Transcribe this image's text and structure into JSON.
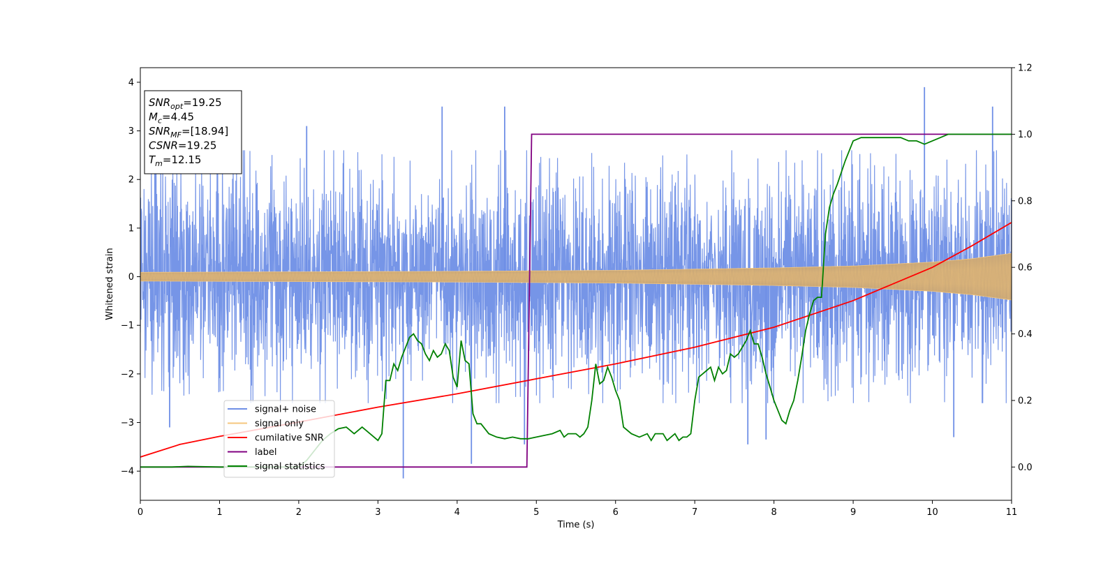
{
  "chart_data": {
    "type": "line",
    "xlabel": "Time (s)",
    "ylabel": "Whitened strain",
    "xlim": [
      0,
      11
    ],
    "ylim": [
      -4.6,
      4.3
    ],
    "y2lim": [
      -0.1,
      1.2
    ],
    "x_ticks": [
      0,
      1,
      2,
      3,
      4,
      5,
      6,
      7,
      8,
      9,
      10,
      11
    ],
    "y_ticks": [
      -4,
      -3,
      -2,
      -1,
      0,
      1,
      2,
      3,
      4
    ],
    "y2_ticks": [
      0.0,
      0.2,
      0.4,
      0.6,
      0.8,
      1.0,
      1.2
    ],
    "stats_box": [
      {
        "symbol": "SNR",
        "sub": "opt",
        "value": "=19.25"
      },
      {
        "symbol": "M",
        "sub": "c",
        "value": "=4.45"
      },
      {
        "symbol": "SNR",
        "sub": "MF",
        "value": "=[18.94]"
      },
      {
        "symbol": "CSNR",
        "sub": "",
        "value": "=19.25"
      },
      {
        "symbol": "T",
        "sub": "m",
        "value": "=12.15"
      }
    ],
    "legend": {
      "position": "lower-left",
      "entries": [
        {
          "label": "signal+ noise",
          "color": "#6f8fe6"
        },
        {
          "label": "signal only",
          "color": "#f5c77e"
        },
        {
          "label": "cumilative SNR",
          "color": "#ff0000"
        },
        {
          "label": "label",
          "color": "#800080"
        },
        {
          "label": "signal statistics",
          "color": "#008000"
        }
      ]
    },
    "series": [
      {
        "name": "signal+ noise",
        "axis": "left",
        "color": "#6f8fe6",
        "envelope": {
          "x": [
            0,
            11
          ],
          "ymin": [
            -2.6,
            -2.6
          ],
          "ymax": [
            2.6,
            2.6
          ]
        },
        "spikes": [
          {
            "x": 3.32,
            "y": -4.15
          },
          {
            "x": 4.18,
            "y": -3.85
          },
          {
            "x": 4.85,
            "y": -3.45
          },
          {
            "x": 4.6,
            "y": 3.5
          },
          {
            "x": 3.81,
            "y": 3.5
          },
          {
            "x": 7.67,
            "y": -3.45
          },
          {
            "x": 9.9,
            "y": 3.9
          },
          {
            "x": 10.76,
            "y": 3.5
          },
          {
            "x": 10.27,
            "y": -3.3
          },
          {
            "x": 7.9,
            "y": -3.35
          },
          {
            "x": 2.1,
            "y": 3.1
          },
          {
            "x": 0.37,
            "y": -3.1
          }
        ]
      },
      {
        "name": "signal only",
        "axis": "left",
        "color": "#f5c77e",
        "amplitude": {
          "x": [
            0,
            2,
            4,
            6,
            8,
            9,
            10,
            10.5,
            11
          ],
          "y": [
            0.09,
            0.1,
            0.11,
            0.13,
            0.18,
            0.22,
            0.3,
            0.37,
            0.48
          ]
        }
      },
      {
        "name": "cumilative SNR",
        "axis": "right",
        "color": "#ff0000",
        "x": [
          0,
          0.5,
          1,
          2,
          3,
          4,
          5,
          6,
          7,
          8,
          9,
          10,
          10.5,
          11
        ],
        "y": [
          0.03,
          0.068,
          0.092,
          0.135,
          0.18,
          0.22,
          0.265,
          0.31,
          0.36,
          0.42,
          0.5,
          0.6,
          0.665,
          0.735
        ]
      },
      {
        "name": "label",
        "axis": "right",
        "color": "#800080",
        "x": [
          0,
          4.88,
          4.94,
          11
        ],
        "y": [
          0.0,
          0.0,
          1.0,
          1.0
        ]
      },
      {
        "name": "signal statistics",
        "axis": "right",
        "color": "#008000",
        "x": [
          0,
          0.4,
          0.6,
          1.0,
          2.0,
          2.1,
          2.2,
          2.3,
          2.4,
          2.5,
          2.6,
          2.7,
          2.8,
          2.9,
          3.0,
          3.05,
          3.1,
          3.15,
          3.2,
          3.25,
          3.3,
          3.35,
          3.4,
          3.45,
          3.5,
          3.55,
          3.6,
          3.65,
          3.7,
          3.75,
          3.8,
          3.85,
          3.9,
          3.95,
          4.0,
          4.05,
          4.1,
          4.15,
          4.2,
          4.25,
          4.3,
          4.4,
          4.5,
          4.6,
          4.7,
          4.8,
          4.9,
          5.0,
          5.1,
          5.2,
          5.3,
          5.35,
          5.4,
          5.5,
          5.55,
          5.6,
          5.65,
          5.7,
          5.75,
          5.8,
          5.85,
          5.9,
          5.95,
          6.0,
          6.05,
          6.1,
          6.2,
          6.3,
          6.4,
          6.45,
          6.5,
          6.55,
          6.6,
          6.65,
          6.7,
          6.75,
          6.8,
          6.85,
          6.9,
          6.95,
          7.0,
          7.05,
          7.1,
          7.15,
          7.2,
          7.25,
          7.3,
          7.35,
          7.4,
          7.45,
          7.5,
          7.55,
          7.6,
          7.65,
          7.7,
          7.75,
          7.8,
          7.85,
          7.9,
          7.95,
          8.0,
          8.05,
          8.1,
          8.15,
          8.2,
          8.25,
          8.3,
          8.35,
          8.4,
          8.45,
          8.5,
          8.55,
          8.6,
          8.65,
          8.7,
          8.75,
          8.8,
          8.9,
          9.0,
          9.1,
          9.2,
          9.3,
          9.4,
          9.5,
          9.6,
          9.7,
          9.8,
          9.9,
          10.0,
          10.1,
          10.2,
          10.3,
          10.5,
          11.0
        ],
        "y": [
          0.0,
          0.0,
          0.002,
          0.0,
          0.0,
          0.02,
          0.05,
          0.08,
          0.1,
          0.115,
          0.12,
          0.1,
          0.12,
          0.1,
          0.08,
          0.1,
          0.26,
          0.26,
          0.31,
          0.29,
          0.33,
          0.36,
          0.39,
          0.4,
          0.38,
          0.37,
          0.34,
          0.32,
          0.35,
          0.33,
          0.34,
          0.37,
          0.35,
          0.27,
          0.24,
          0.38,
          0.32,
          0.31,
          0.16,
          0.13,
          0.13,
          0.1,
          0.09,
          0.085,
          0.09,
          0.085,
          0.085,
          0.09,
          0.095,
          0.1,
          0.11,
          0.09,
          0.1,
          0.1,
          0.09,
          0.1,
          0.12,
          0.2,
          0.31,
          0.25,
          0.26,
          0.3,
          0.27,
          0.23,
          0.2,
          0.12,
          0.1,
          0.09,
          0.1,
          0.08,
          0.1,
          0.1,
          0.1,
          0.08,
          0.09,
          0.1,
          0.08,
          0.09,
          0.09,
          0.1,
          0.2,
          0.27,
          0.28,
          0.29,
          0.3,
          0.26,
          0.3,
          0.28,
          0.29,
          0.34,
          0.33,
          0.34,
          0.36,
          0.38,
          0.41,
          0.37,
          0.37,
          0.33,
          0.28,
          0.24,
          0.2,
          0.17,
          0.14,
          0.13,
          0.17,
          0.2,
          0.26,
          0.33,
          0.41,
          0.46,
          0.5,
          0.51,
          0.51,
          0.7,
          0.78,
          0.82,
          0.85,
          0.92,
          0.98,
          0.99,
          0.99,
          0.99,
          0.99,
          0.99,
          0.99,
          0.98,
          0.98,
          0.97,
          0.98,
          0.99,
          1.0,
          1.0,
          1.0,
          1.0
        ]
      }
    ]
  }
}
